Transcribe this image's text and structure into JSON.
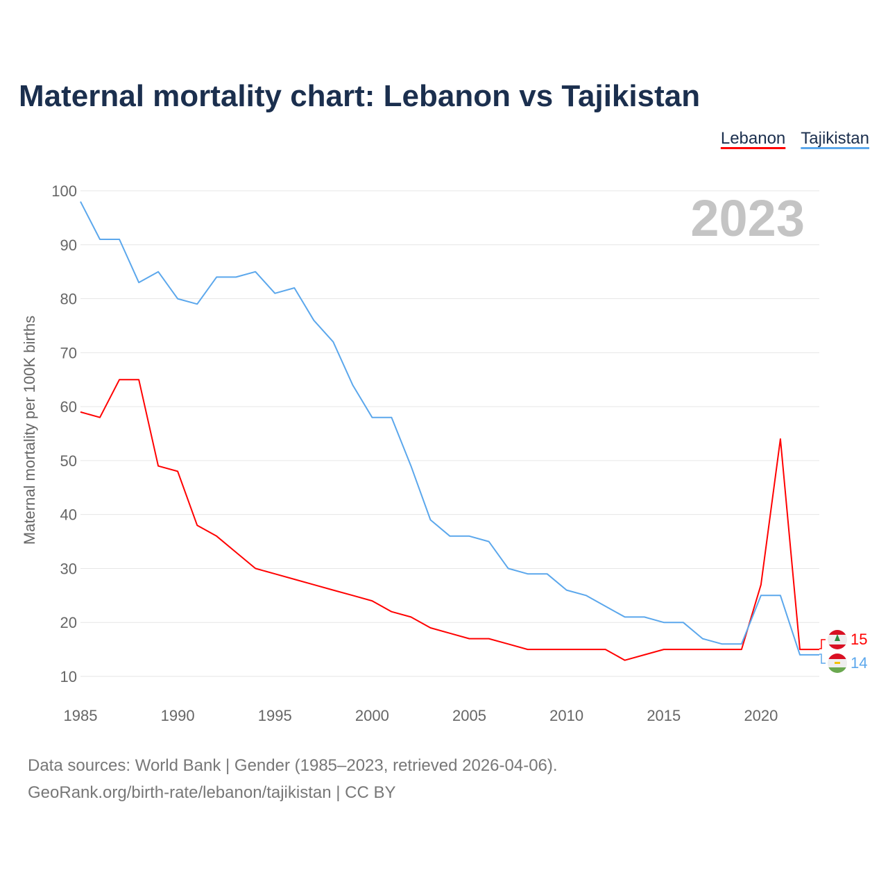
{
  "chart_data": {
    "type": "line",
    "title": "Maternal mortality chart: Lebanon vs Tajikistan",
    "xlabel": "",
    "ylabel": "Maternal mortality per 100K births",
    "xlim": [
      1985,
      2023
    ],
    "ylim": [
      10,
      100
    ],
    "x_ticks": [
      1985,
      1990,
      1995,
      2000,
      2005,
      2010,
      2015,
      2020
    ],
    "y_ticks": [
      10,
      20,
      30,
      40,
      50,
      60,
      70,
      80,
      90,
      100
    ],
    "grid": true,
    "legend_placement": "top-right",
    "year_label": "2023",
    "x": [
      1985,
      1986,
      1987,
      1988,
      1989,
      1990,
      1991,
      1992,
      1993,
      1994,
      1995,
      1996,
      1997,
      1998,
      1999,
      2000,
      2001,
      2002,
      2003,
      2004,
      2005,
      2006,
      2007,
      2008,
      2009,
      2010,
      2011,
      2012,
      2013,
      2014,
      2015,
      2016,
      2017,
      2018,
      2019,
      2020,
      2021,
      2022,
      2023
    ],
    "series": [
      {
        "name": "Lebanon",
        "color": "#ff0000",
        "end_label": "15",
        "values": [
          59,
          58,
          65,
          65,
          49,
          48,
          38,
          36,
          33,
          30,
          29,
          28,
          27,
          26,
          25,
          24,
          22,
          21,
          19,
          18,
          17,
          17,
          16,
          15,
          15,
          15,
          15,
          15,
          13,
          14,
          15,
          15,
          15,
          15,
          15,
          27,
          54,
          15,
          15
        ]
      },
      {
        "name": "Tajikistan",
        "color": "#5ba7ec",
        "end_label": "14",
        "values": [
          98,
          91,
          91,
          83,
          85,
          80,
          79,
          84,
          84,
          85,
          81,
          82,
          76,
          72,
          64,
          58,
          58,
          49,
          39,
          36,
          36,
          35,
          30,
          29,
          29,
          26,
          25,
          23,
          21,
          21,
          20,
          20,
          17,
          16,
          16,
          25,
          25,
          14,
          14
        ]
      }
    ]
  },
  "footer": {
    "line1": "Data sources: World Bank | Gender (1985–2023, retrieved 2026-04-06).",
    "line2": "GeoRank.org/birth-rate/lebanon/tajikistan | CC BY"
  }
}
